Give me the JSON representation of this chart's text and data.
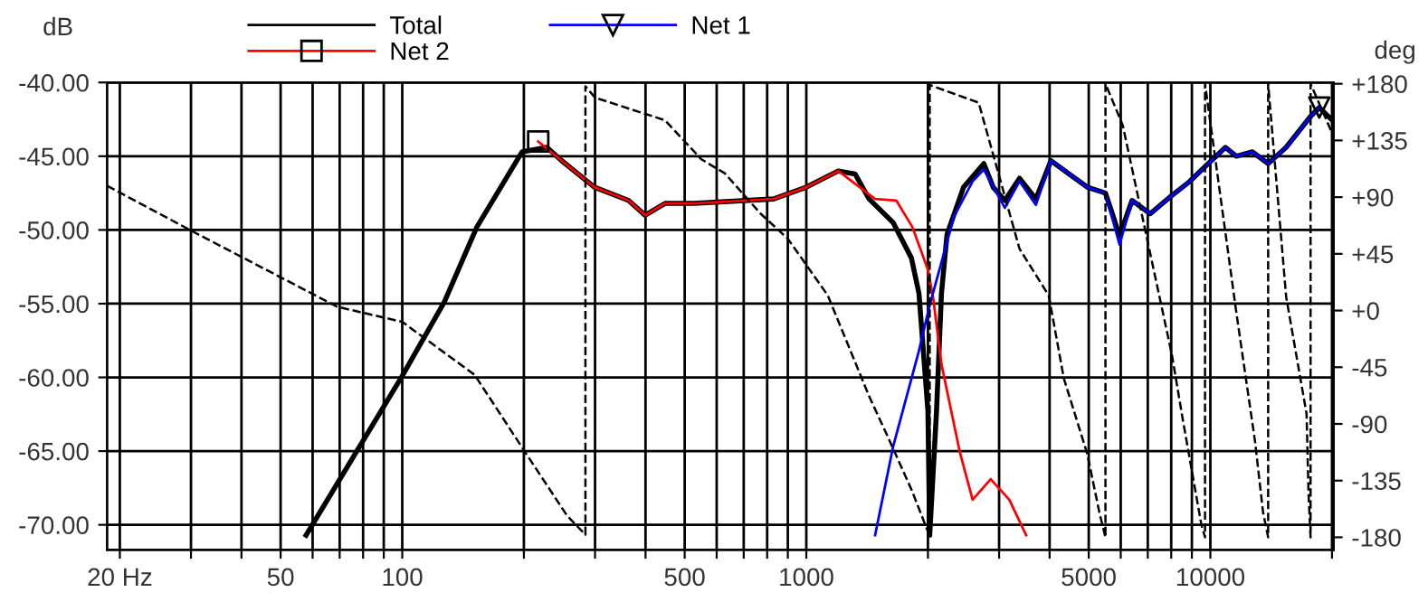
{
  "chart_data": {
    "type": "line",
    "ylabel": "dB",
    "y2label": "deg",
    "legend": "top",
    "grid": true,
    "xlim": [
      18.6,
      20200
    ],
    "ylim": [
      -71.7,
      -40
    ],
    "y2lim": [
      -190,
      181
    ],
    "log": "x",
    "xticks": [
      {
        "value": 20,
        "label": "20 Hz"
      },
      {
        "value": 30,
        "label": null
      },
      {
        "value": 40,
        "label": null
      },
      50,
      {
        "value": 60,
        "label": null
      },
      {
        "value": 70,
        "label": null
      },
      {
        "value": 80,
        "label": null
      },
      {
        "value": 90,
        "label": null
      },
      100,
      {
        "value": 200,
        "label": null
      },
      {
        "value": 300,
        "label": null
      },
      {
        "value": 400,
        "label": null
      },
      500,
      {
        "value": 600,
        "label": null
      },
      {
        "value": 700,
        "label": null
      },
      {
        "value": 800,
        "label": null
      },
      {
        "value": 900,
        "label": null
      },
      1000,
      {
        "value": 2000,
        "label": null
      },
      {
        "value": 3000,
        "label": null
      },
      {
        "value": 4000,
        "label": null
      },
      5000,
      {
        "value": 6000,
        "label": null
      },
      {
        "value": 7000,
        "label": null
      },
      {
        "value": 8000,
        "label": null
      },
      {
        "value": 9000,
        "label": null
      },
      10000,
      {
        "value": 20000,
        "label": null
      }
    ],
    "yticks": [
      {
        "value": -40,
        "label": "-40.00"
      },
      {
        "value": -45,
        "label": "-45.00"
      },
      {
        "value": -50,
        "label": "-50.00"
      },
      {
        "value": -55,
        "label": "-55.00"
      },
      {
        "value": -60,
        "label": "-60.00"
      },
      {
        "value": -65,
        "label": "-65.00"
      },
      {
        "value": -70,
        "label": "-70.00"
      }
    ],
    "y2ticks": [
      {
        "value": 180,
        "label": "+180"
      },
      {
        "value": 135,
        "label": "+135"
      },
      {
        "value": 90,
        "label": "+90"
      },
      {
        "value": 45,
        "label": "+45"
      },
      {
        "value": 0,
        "label": "+0"
      },
      {
        "value": -45,
        "label": "-45"
      },
      {
        "value": -90,
        "label": "-90"
      },
      {
        "value": -135,
        "label": "-135"
      },
      {
        "value": -180,
        "label": "-180"
      }
    ],
    "series": [
      {
        "name": "Total",
        "color": "#000000",
        "line_style": "solid",
        "x": [
          57.8,
          100,
          127,
          153,
          198,
          228,
          248,
          299,
          363,
          399,
          447,
          527,
          830,
          1000,
          1200,
          1320,
          1430,
          1640,
          1820,
          1900,
          2000,
          2020,
          2100,
          2160,
          2230,
          2450,
          2750,
          2900,
          3100,
          3370,
          3700,
          4030,
          4470,
          4960,
          5500,
          5960,
          6400,
          7100,
          8000,
          8900,
          9800,
          10900,
          11600,
          12700,
          13900,
          15400,
          17700,
          18600,
          20100
        ],
        "values": [
          -70.7,
          -59.9,
          -54.9,
          -49.8,
          -44.7,
          -44.4,
          -45.3,
          -47.1,
          -48.0,
          -49.0,
          -48.2,
          -48.2,
          -47.9,
          -47.1,
          -46.0,
          -46.2,
          -47.9,
          -49.5,
          -51.9,
          -54.3,
          -62.3,
          -70.7,
          -62.3,
          -54.3,
          -50.3,
          -47.1,
          -45.5,
          -47.1,
          -48.0,
          -46.5,
          -47.9,
          -45.3,
          -46.2,
          -47.1,
          -47.5,
          -50.4,
          -48.0,
          -48.9,
          -47.7,
          -46.7,
          -45.6,
          -44.4,
          -45.0,
          -44.7,
          -45.5,
          -44.4,
          -42.3,
          -41.7,
          -42.6
        ]
      },
      {
        "name": "Net 2",
        "color": "#ff0000",
        "line_style": "solid",
        "x": [
          217,
          248,
          299,
          363,
          399,
          447,
          527,
          830,
          1000,
          1200,
          1480,
          1670,
          1830,
          2000,
          2060,
          2160,
          2400,
          2580,
          2860,
          3180,
          3500
        ],
        "values": [
          -44.0,
          -45.3,
          -47.1,
          -48.0,
          -49.0,
          -48.2,
          -48.2,
          -47.9,
          -47.1,
          -46.0,
          -47.9,
          -48.0,
          -49.8,
          -52.7,
          -54.6,
          -59.1,
          -65.1,
          -68.3,
          -66.9,
          -68.3,
          -70.7
        ]
      },
      {
        "type": "scatter",
        "color": "#000000",
        "marker": "square",
        "x": [
          217
        ],
        "values": [
          -44.0
        ]
      },
      {
        "name": "Net 1",
        "color": "#0000ff",
        "line_style": "solid",
        "x": [
          1480,
          1640,
          1900,
          2020,
          2320,
          2580,
          2750,
          3100,
          3370,
          3700,
          4030,
          4960,
          5500,
          5960,
          6400,
          7100,
          8000,
          8900,
          9800,
          10900,
          11600,
          12700,
          13900,
          15400,
          17700,
          18600
        ],
        "values": [
          -70.7,
          -64.7,
          -58.2,
          -55.1,
          -49.1,
          -46.7,
          -45.9,
          -48.5,
          -46.7,
          -48.3,
          -45.3,
          -47.1,
          -47.5,
          -51.0,
          -48.0,
          -48.9,
          -47.7,
          -46.7,
          -45.6,
          -44.4,
          -45.0,
          -44.7,
          -45.5,
          -44.4,
          -42.3,
          -41.7
        ]
      },
      {
        "type": "scatter",
        "color": "#000000",
        "marker": "triangle",
        "x": [
          18600
        ],
        "values": [
          -41.7
        ]
      },
      {
        "color": "#000000",
        "axis": "y2",
        "line_style": "dashed",
        "x": [
          18.6,
          30.2,
          69,
          100,
          151,
          202,
          256,
          284,
          284,
          300,
          447,
          550,
          628,
          770,
          900,
          1130,
          1430,
          1590,
          1820,
          2020,
          2020,
          2670,
          3370,
          3980,
          4340,
          4960,
          5310,
          5500,
          5500,
          6070,
          8030,
          8540,
          9500,
          9700,
          9700,
          11600,
          12900,
          13500,
          13900,
          13900,
          15400,
          17300,
          17500,
          17700,
          17700,
          20000
        ],
        "values": [
          99,
          63,
          3,
          -9,
          -51,
          -113,
          -163,
          -178,
          178,
          169,
          151,
          120,
          109,
          77,
          57,
          12,
          -68,
          -100,
          -142,
          -179,
          179,
          165,
          49,
          12,
          -54,
          -114,
          -160,
          -180,
          180,
          147,
          -35,
          -86,
          -170,
          -180,
          180,
          -2,
          -104,
          -160,
          -180,
          180,
          11,
          -82,
          -146,
          -180,
          180,
          141
        ]
      }
    ]
  }
}
